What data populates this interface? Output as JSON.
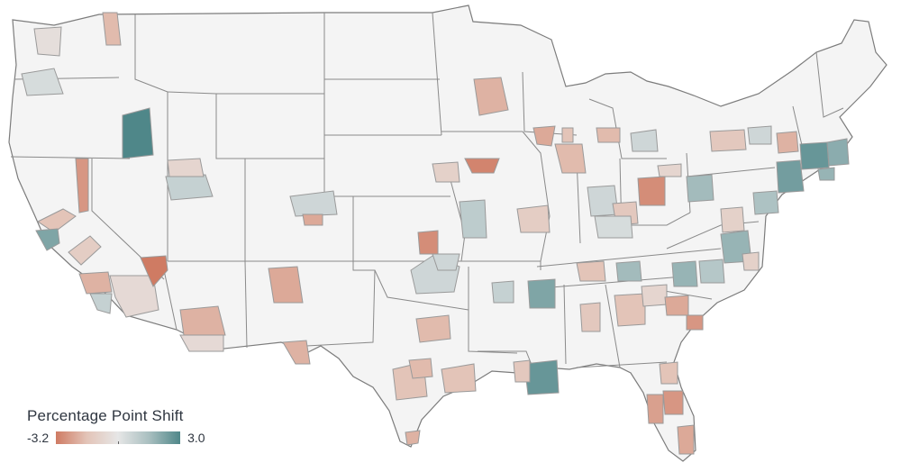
{
  "legend": {
    "title": "Percentage Point Shift",
    "min_label": "-3.2",
    "max_label": "3.0",
    "scale_min": -3.2,
    "scale_max": 3.0,
    "colors": [
      "#cf7b63",
      "#e3c4b8",
      "#e6e6e6",
      "#a9bfc0",
      "#4f8789"
    ]
  },
  "map": {
    "land_color": "#f4f4f4",
    "border_color": "#7c7c7c",
    "region_border_color": "#9a9a9a"
  },
  "regions": [
    {
      "id": "seattle",
      "shift": -0.4
    },
    {
      "id": "spokane",
      "shift": -1.8
    },
    {
      "id": "portland",
      "shift": 0.4
    },
    {
      "id": "boise",
      "shift": 3.0
    },
    {
      "id": "reno-carson",
      "shift": -2.6
    },
    {
      "id": "sacramento",
      "shift": -1.6
    },
    {
      "id": "sf-bay",
      "shift": 2.2
    },
    {
      "id": "fresno",
      "shift": -1.2
    },
    {
      "id": "la",
      "shift": -2.0
    },
    {
      "id": "inland-empire",
      "shift": -0.6
    },
    {
      "id": "san-diego",
      "shift": 0.8
    },
    {
      "id": "las-vegas",
      "shift": -3.2
    },
    {
      "id": "salt-lake",
      "shift": 0.8
    },
    {
      "id": "ogden",
      "shift": -0.8
    },
    {
      "id": "phoenix",
      "shift": -2.0
    },
    {
      "id": "tucson",
      "shift": -0.6
    },
    {
      "id": "denver",
      "shift": 0.6
    },
    {
      "id": "colorado-springs",
      "shift": -2.2
    },
    {
      "id": "albuquerque",
      "shift": -2.2
    },
    {
      "id": "el-paso",
      "shift": -2.0
    },
    {
      "id": "wichita",
      "shift": -2.8
    },
    {
      "id": "omaha",
      "shift": -1.0
    },
    {
      "id": "kansas-city",
      "shift": 1.0
    },
    {
      "id": "oklahoma-city",
      "shift": 0.6
    },
    {
      "id": "tulsa",
      "shift": 0.6
    },
    {
      "id": "dallas",
      "shift": -1.8
    },
    {
      "id": "austin",
      "shift": -1.6
    },
    {
      "id": "san-antonio",
      "shift": -1.8
    },
    {
      "id": "houston",
      "shift": -1.6
    },
    {
      "id": "mcallen",
      "shift": -2.0
    },
    {
      "id": "minneapolis",
      "shift": -2.0
    },
    {
      "id": "des-moines",
      "shift": -3.0
    },
    {
      "id": "milwaukee",
      "shift": -2.2
    },
    {
      "id": "madison",
      "shift": -1.6
    },
    {
      "id": "chicago",
      "shift": -1.8
    },
    {
      "id": "st-louis",
      "shift": -1.2
    },
    {
      "id": "grand-rapids",
      "shift": -1.8
    },
    {
      "id": "detroit",
      "shift": 0.6
    },
    {
      "id": "indianapolis",
      "shift": 0.6
    },
    {
      "id": "columbus",
      "shift": -2.8
    },
    {
      "id": "cincinnati",
      "shift": -1.4
    },
    {
      "id": "louisville",
      "shift": 0.4
    },
    {
      "id": "memphis",
      "shift": 2.2
    },
    {
      "id": "little-rock",
      "shift": 0.8
    },
    {
      "id": "nashville",
      "shift": -1.6
    },
    {
      "id": "knoxville",
      "shift": 1.6
    },
    {
      "id": "birmingham",
      "shift": -1.6
    },
    {
      "id": "jackson",
      "shift": -1.4
    },
    {
      "id": "new-orleans",
      "shift": 2.6
    },
    {
      "id": "baton-rouge",
      "shift": -1.4
    },
    {
      "id": "atlanta",
      "shift": -0.8
    },
    {
      "id": "charlotte",
      "shift": 1.8
    },
    {
      "id": "raleigh",
      "shift": 1.2
    },
    {
      "id": "columbia-sc",
      "shift": -2.2
    },
    {
      "id": "charleston",
      "shift": -2.6
    },
    {
      "id": "jacksonville",
      "shift": -1.6
    },
    {
      "id": "orlando",
      "shift": -2.6
    },
    {
      "id": "tampa",
      "shift": -2.4
    },
    {
      "id": "miami",
      "shift": -2.2
    },
    {
      "id": "pittsburgh",
      "shift": 1.6
    },
    {
      "id": "cleveland",
      "shift": -0.8
    },
    {
      "id": "buffalo",
      "shift": -1.4
    },
    {
      "id": "rochester",
      "shift": 0.6
    },
    {
      "id": "dc",
      "shift": 1.8
    },
    {
      "id": "richmond",
      "shift": -1.0
    },
    {
      "id": "virginia-beach",
      "shift": -1.0
    },
    {
      "id": "philadelphia",
      "shift": 1.4
    },
    {
      "id": "nyc",
      "shift": 2.4
    },
    {
      "id": "hartford",
      "shift": 2.6
    },
    {
      "id": "boston",
      "shift": 2.0
    },
    {
      "id": "providence",
      "shift": 1.8
    },
    {
      "id": "albany",
      "shift": -2.0
    }
  ]
}
